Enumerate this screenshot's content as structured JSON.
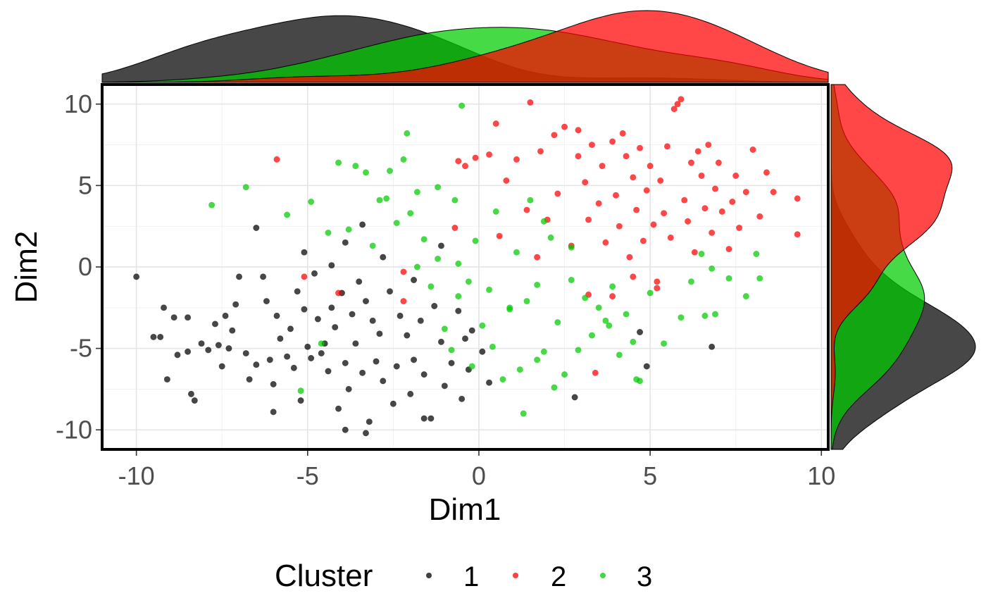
{
  "chart_data": {
    "type": "scatter",
    "title": "",
    "xlabel": "Dim1",
    "ylabel": "Dim2",
    "xlim": [
      -11,
      10.2
    ],
    "ylim": [
      -11.2,
      11.2
    ],
    "x_ticks": [
      -10,
      -5,
      0,
      5,
      10
    ],
    "y_ticks": [
      -10,
      -5,
      0,
      5,
      10
    ],
    "grid": true,
    "marginal_density": [
      "top",
      "right"
    ],
    "legend": {
      "title": "Cluster",
      "position": "bottom",
      "entries": [
        "1",
        "2",
        "3"
      ]
    },
    "colors": {
      "1": "#000000",
      "2": "#ff0000",
      "3": "#00cc00"
    },
    "series": [
      {
        "name": "1",
        "color": "#000000",
        "points": [
          [
            -10,
            -0.6
          ],
          [
            -9.5,
            -4.3
          ],
          [
            -9.3,
            -4.3
          ],
          [
            -9.2,
            -2.5
          ],
          [
            -9.1,
            -6.9
          ],
          [
            -8.9,
            -3.1
          ],
          [
            -8.8,
            -5.4
          ],
          [
            -8.5,
            -3.1
          ],
          [
            -8.5,
            -5.2
          ],
          [
            -8.4,
            -7.8
          ],
          [
            -8.3,
            -8.2
          ],
          [
            -8.1,
            -4.7
          ],
          [
            -7.9,
            -5.1
          ],
          [
            -7.7,
            -3.5
          ],
          [
            -7.6,
            -4.8
          ],
          [
            -7.5,
            -6.1
          ],
          [
            -7.4,
            -3
          ],
          [
            -7.3,
            -5
          ],
          [
            -7.2,
            -3.9
          ],
          [
            -7.1,
            -2.3
          ],
          [
            -7,
            -0.6
          ],
          [
            -6.8,
            -5.3
          ],
          [
            -6.7,
            -6.9
          ],
          [
            -6.5,
            -6
          ],
          [
            -6.3,
            -0.6
          ],
          [
            -6.2,
            -2.1
          ],
          [
            -6.1,
            -5.7
          ],
          [
            -6,
            -7.2
          ],
          [
            -5.9,
            -3
          ],
          [
            -5.8,
            -4.4
          ],
          [
            -5.6,
            -5.5
          ],
          [
            -5.5,
            -3.8
          ],
          [
            -5.4,
            -6.2
          ],
          [
            -5.3,
            -1.5
          ],
          [
            -5.2,
            -8.2
          ],
          [
            -5.1,
            -2.6
          ],
          [
            -5,
            -4.9
          ],
          [
            -4.9,
            -5.6
          ],
          [
            -4.8,
            -0.4
          ],
          [
            -4.7,
            -3.2
          ],
          [
            -4.6,
            -5.3
          ],
          [
            -4.5,
            -4.7
          ],
          [
            -4.4,
            -6.4
          ],
          [
            -4.3,
            -2.5
          ],
          [
            -4.2,
            -3.7
          ],
          [
            -4.1,
            -8.7
          ],
          [
            -4,
            -1.6
          ],
          [
            -3.9,
            -5.9
          ],
          [
            -3.8,
            -7.5
          ],
          [
            -3.7,
            -2.9
          ],
          [
            -3.6,
            -4.7
          ],
          [
            -3.5,
            -0.9
          ],
          [
            -3.4,
            -6.5
          ],
          [
            -3.3,
            -2.1
          ],
          [
            -3.2,
            -9.5
          ],
          [
            -3.1,
            -3.3
          ],
          [
            -3,
            -5.8
          ],
          [
            -2.9,
            -4.1
          ],
          [
            -2.8,
            -7
          ],
          [
            -2.6,
            -1.5
          ],
          [
            -2.5,
            -8.4
          ],
          [
            -2.4,
            -6.1
          ],
          [
            -2.3,
            -3
          ],
          [
            -2.1,
            -4.2
          ],
          [
            -2,
            -7.8
          ],
          [
            -1.9,
            -5.7
          ],
          [
            -1.7,
            -3.3
          ],
          [
            -1.6,
            -6.6
          ],
          [
            -1.4,
            -9.3
          ],
          [
            -1.3,
            -2.4
          ],
          [
            -1.1,
            -4.6
          ],
          [
            -1,
            -7.3
          ],
          [
            -0.8,
            -5.9
          ],
          [
            -0.6,
            -2.7
          ],
          [
            -0.5,
            -8.1
          ],
          [
            -0.4,
            -4.4
          ],
          [
            -0.3,
            -6.3
          ],
          [
            -0.2,
            -3.9
          ],
          [
            0.1,
            -5.2
          ],
          [
            0.3,
            -7.1
          ],
          [
            -6.5,
            2.4
          ],
          [
            -5.1,
            0.9
          ],
          [
            -4.3,
            0.1
          ],
          [
            -3.9,
            1.5
          ],
          [
            -3.4,
            2.6
          ],
          [
            -2.8,
            0.6
          ],
          [
            -1.9,
            -0.8
          ],
          [
            -1.1,
            1.3
          ],
          [
            -6,
            -8.9
          ],
          [
            -3.3,
            -10.2
          ],
          [
            -3.9,
            -10
          ],
          [
            -1.6,
            -9.3
          ],
          [
            4.7,
            -4
          ],
          [
            4.9,
            -6.1
          ],
          [
            6.8,
            -4.9
          ],
          [
            2.8,
            -8
          ]
        ]
      },
      {
        "name": "2",
        "color": "#ff0000",
        "points": [
          [
            -5.9,
            6.6
          ],
          [
            -5.1,
            -0.6
          ],
          [
            -4.1,
            -1.6
          ],
          [
            -2.2,
            -0.3
          ],
          [
            -2.2,
            -2.1
          ],
          [
            -0.7,
            2.4
          ],
          [
            -0.6,
            6.5
          ],
          [
            -0.4,
            6.2
          ],
          [
            -0.1,
            6.7
          ],
          [
            0.3,
            6.9
          ],
          [
            0.5,
            8.8
          ],
          [
            0.6,
            1.9
          ],
          [
            0.8,
            5.3
          ],
          [
            1.1,
            6.6
          ],
          [
            1.4,
            3.5
          ],
          [
            1.5,
            10.1
          ],
          [
            1.7,
            0.6
          ],
          [
            1.8,
            7.1
          ],
          [
            2,
            2.9
          ],
          [
            2.2,
            8.1
          ],
          [
            2.3,
            4.5
          ],
          [
            2.5,
            8.6
          ],
          [
            2.7,
            1.3
          ],
          [
            2.9,
            6.8
          ],
          [
            3.1,
            5.2
          ],
          [
            3.2,
            2.9
          ],
          [
            3.3,
            7.5
          ],
          [
            3.5,
            3.9
          ],
          [
            3.6,
            6.2
          ],
          [
            3.7,
            1.5
          ],
          [
            3.9,
            7.7
          ],
          [
            4,
            4.4
          ],
          [
            4.1,
            2.5
          ],
          [
            4.3,
            6.8
          ],
          [
            4.4,
            0.6
          ],
          [
            4.5,
            5.5
          ],
          [
            4.6,
            3.5
          ],
          [
            4.7,
            7.3
          ],
          [
            4.8,
            1.6
          ],
          [
            4.9,
            4.7
          ],
          [
            5,
            6.2
          ],
          [
            5.1,
            2.6
          ],
          [
            5.2,
            -0.9
          ],
          [
            5.3,
            5.3
          ],
          [
            5.4,
            3.3
          ],
          [
            5.5,
            7.4
          ],
          [
            5.6,
            1.8
          ],
          [
            5.7,
            9.7
          ],
          [
            5.8,
            10
          ],
          [
            5.9,
            10.3
          ],
          [
            6,
            4.1
          ],
          [
            6.1,
            2.8
          ],
          [
            6.2,
            6.4
          ],
          [
            6.3,
            0.9
          ],
          [
            6.5,
            5.6
          ],
          [
            6.6,
            3.6
          ],
          [
            6.7,
            7.5
          ],
          [
            6.8,
            2.1
          ],
          [
            6.9,
            4.8
          ],
          [
            7,
            6.4
          ],
          [
            7.1,
            3.4
          ],
          [
            7.3,
            1.1
          ],
          [
            7.4,
            4
          ],
          [
            7.5,
            5.6
          ],
          [
            7.6,
            2.4
          ],
          [
            7.8,
            4.6
          ],
          [
            8,
            7.2
          ],
          [
            8.2,
            3.1
          ],
          [
            8.4,
            5.8
          ],
          [
            8.6,
            4.6
          ],
          [
            9.3,
            4.2
          ],
          [
            9.3,
            2
          ],
          [
            3.2,
            -1.7
          ],
          [
            3.4,
            -6.5
          ],
          [
            3.9,
            -1.8
          ],
          [
            4.5,
            -0.6
          ],
          [
            5.2,
            -1.3
          ],
          [
            2.9,
            8.4
          ],
          [
            4.2,
            8.2
          ],
          [
            6.4,
            7.1
          ]
        ]
      },
      {
        "name": "3",
        "color": "#00cc00",
        "points": [
          [
            -7.8,
            3.8
          ],
          [
            -6.8,
            4.9
          ],
          [
            -5.6,
            3.2
          ],
          [
            -5.2,
            -7.6
          ],
          [
            -4.6,
            -4.7
          ],
          [
            -4.4,
            2.1
          ],
          [
            -4.1,
            6.4
          ],
          [
            -3.8,
            2.3
          ],
          [
            -3.6,
            6.2
          ],
          [
            -3.3,
            5.8
          ],
          [
            -3.1,
            1.3
          ],
          [
            -2.9,
            4.1
          ],
          [
            -2.6,
            5.9
          ],
          [
            -2.4,
            2.7
          ],
          [
            -2.2,
            6.6
          ],
          [
            -2.1,
            8.2
          ],
          [
            -2,
            3.3
          ],
          [
            -1.8,
            4.6
          ],
          [
            -1.6,
            1.7
          ],
          [
            -1.4,
            -1.2
          ],
          [
            -1.2,
            0.5
          ],
          [
            -1,
            -3.8
          ],
          [
            -0.8,
            -5.1
          ],
          [
            -0.6,
            -1.8
          ],
          [
            -0.5,
            9.9
          ],
          [
            -0.3,
            -0.9
          ],
          [
            -0.1,
            1.6
          ],
          [
            0.1,
            -3.6
          ],
          [
            0.3,
            -1.4
          ],
          [
            0.5,
            3.4
          ],
          [
            0.7,
            -6.9
          ],
          [
            0.9,
            -2.6
          ],
          [
            1.1,
            0.9
          ],
          [
            1.3,
            -9
          ],
          [
            1.4,
            -2.1
          ],
          [
            1.5,
            4.1
          ],
          [
            1.7,
            -1.1
          ],
          [
            1.9,
            -5.2
          ],
          [
            2.1,
            1.8
          ],
          [
            2.3,
            -3.4
          ],
          [
            2.5,
            -6.6
          ],
          [
            2.7,
            -0.8
          ],
          [
            2.9,
            -5.1
          ],
          [
            3.1,
            -1.9
          ],
          [
            3.3,
            -4.2
          ],
          [
            3.5,
            -2.5
          ],
          [
            3.7,
            -3.3
          ],
          [
            3.9,
            -1.2
          ],
          [
            4.1,
            -5.4
          ],
          [
            4.3,
            -2.9
          ],
          [
            4.5,
            -4.6
          ],
          [
            4.7,
            -7
          ],
          [
            5,
            -1.6
          ],
          [
            5.4,
            -4.7
          ],
          [
            5.9,
            -3.1
          ],
          [
            6.2,
            -0.9
          ],
          [
            6.5,
            0.8
          ],
          [
            6.6,
            -3
          ],
          [
            6.8,
            -0.1
          ],
          [
            6.9,
            -2.9
          ],
          [
            7.3,
            -0.7
          ],
          [
            7.8,
            -1.8
          ],
          [
            8.1,
            0.8
          ],
          [
            8.2,
            -0.7
          ],
          [
            -4.9,
            4
          ],
          [
            -2.7,
            4.2
          ],
          [
            -1.8,
            0
          ],
          [
            -0.6,
            0.2
          ],
          [
            0.9,
            -2.5
          ],
          [
            1.2,
            -6.3
          ],
          [
            2.2,
            -7.4
          ],
          [
            2.7,
            1.2
          ],
          [
            3.8,
            -3.6
          ],
          [
            4.6,
            -6.9
          ],
          [
            0.4,
            -4.9
          ],
          [
            -0.2,
            -6.1
          ],
          [
            1.9,
            2.8
          ],
          [
            -1.2,
            4.9
          ],
          [
            -0.7,
            4.1
          ],
          [
            1.7,
            -5.7
          ]
        ]
      }
    ]
  }
}
